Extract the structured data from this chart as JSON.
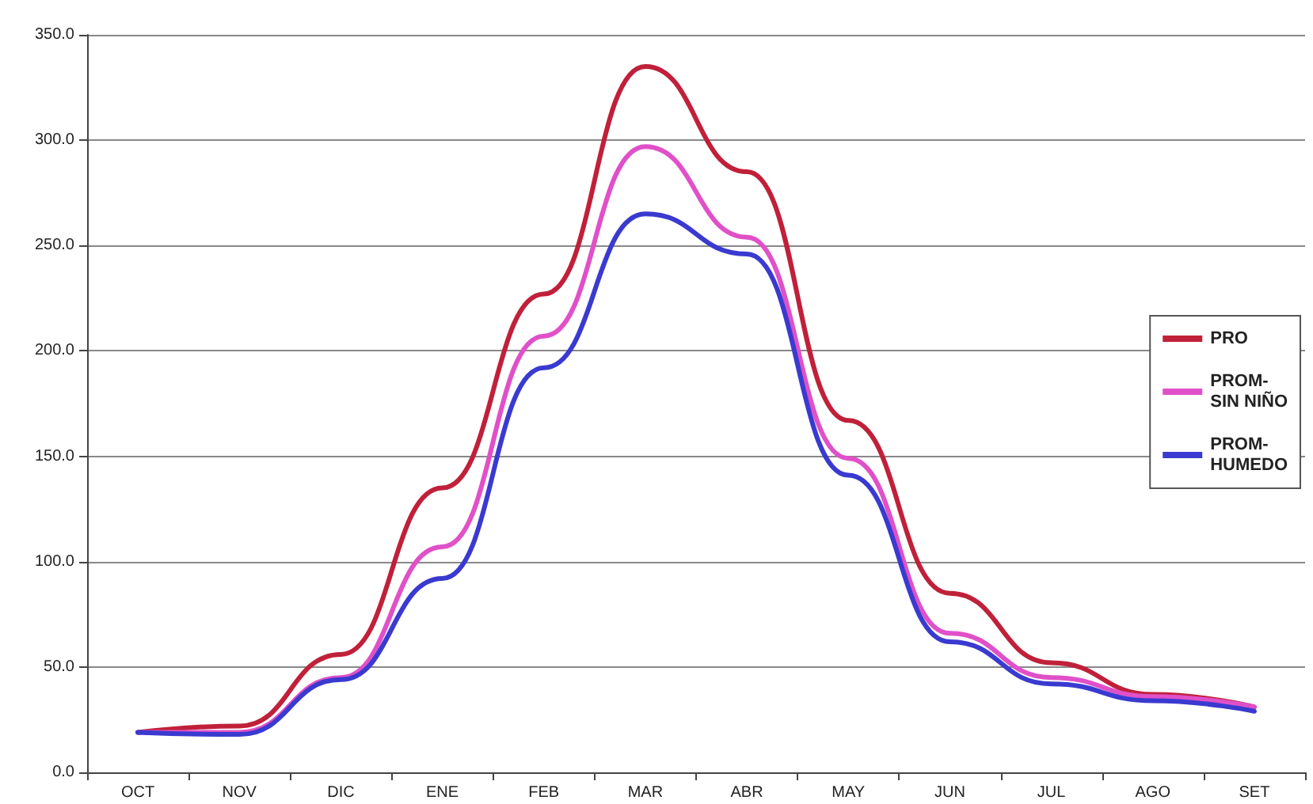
{
  "chart_data": {
    "type": "line",
    "categories": [
      "OCT",
      "NOV",
      "DIC",
      "ENE",
      "FEB",
      "MAR",
      "ABR",
      "MAY",
      "JUN",
      "JUL",
      "AGO",
      "SET"
    ],
    "series": [
      {
        "name": "PRO",
        "color": "#c0203a",
        "values": [
          19,
          22,
          56,
          135,
          227,
          335,
          285,
          167,
          85,
          52,
          37,
          31
        ]
      },
      {
        "name": "PROM-\nSIN NIÑO",
        "color": "#e050c8",
        "values": [
          19,
          19,
          45,
          107,
          207,
          297,
          254,
          149,
          66,
          45,
          36,
          31
        ]
      },
      {
        "name": "PROM-\nHUMEDO",
        "color": "#3a3ad0",
        "values": [
          19,
          18,
          44,
          92,
          192,
          265,
          246,
          141,
          62,
          42,
          34,
          29
        ]
      }
    ],
    "ylim": [
      0,
      350
    ],
    "yticks": [
      {
        "value": 0,
        "label": "0.0"
      },
      {
        "value": 50,
        "label": "50.0"
      },
      {
        "value": 100,
        "label": "100.0"
      },
      {
        "value": 150,
        "label": "150.0"
      },
      {
        "value": 200,
        "label": "200.0"
      },
      {
        "value": 250,
        "label": "250.0"
      },
      {
        "value": 300,
        "label": "300.0"
      },
      {
        "value": 350,
        "label": "350.0"
      }
    ],
    "grid": "y",
    "legend": "right",
    "marker": "none",
    "line_style": "solid"
  }
}
